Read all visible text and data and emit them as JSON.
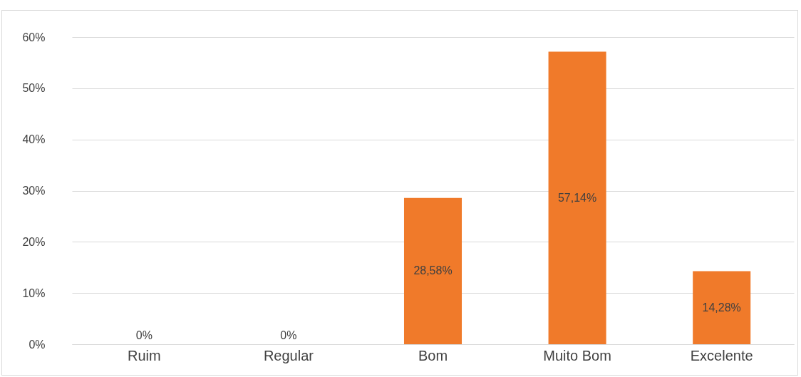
{
  "chart_data": {
    "type": "bar",
    "categories": [
      "Ruim",
      "Regular",
      "Bom",
      "Muito Bom",
      "Excelente"
    ],
    "values": [
      0,
      0,
      28.58,
      57.14,
      14.28
    ],
    "value_labels": [
      "0%",
      "0%",
      "28,58%",
      "57,14%",
      "14,28%"
    ],
    "color": "#f07a2a",
    "ylim": [
      0,
      60
    ],
    "yticks": [
      {
        "value": 0,
        "label": "0%"
      },
      {
        "value": 10,
        "label": "10%"
      },
      {
        "value": 20,
        "label": "20%"
      },
      {
        "value": 30,
        "label": "30%"
      },
      {
        "value": 40,
        "label": "40%"
      },
      {
        "value": 50,
        "label": "50%"
      },
      {
        "value": 60,
        "label": "60%"
      }
    ],
    "grid": "y"
  }
}
